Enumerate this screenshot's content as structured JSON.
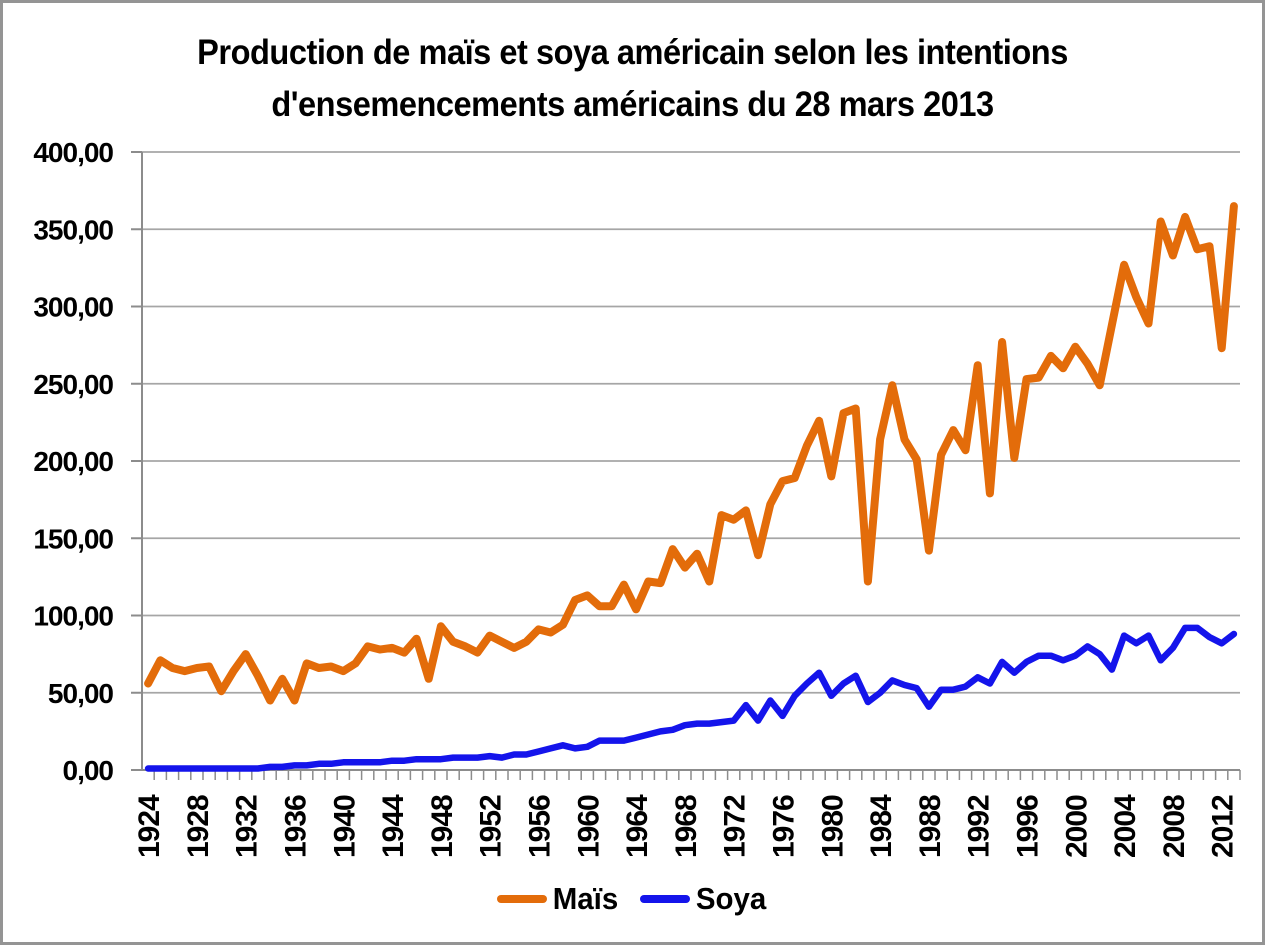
{
  "chart_data": {
    "type": "line",
    "title": "Production de maïs et soya américain selon les intentions d'ensemencements américains du 28 mars 2013",
    "title_lines": [
      "Production de maïs et soya américain selon les intentions",
      "d'ensemencements américains du 28 mars 2013"
    ],
    "x": [
      1924,
      1925,
      1926,
      1927,
      1928,
      1929,
      1930,
      1931,
      1932,
      1933,
      1934,
      1935,
      1936,
      1937,
      1938,
      1939,
      1940,
      1941,
      1942,
      1943,
      1944,
      1945,
      1946,
      1947,
      1948,
      1949,
      1950,
      1951,
      1952,
      1953,
      1954,
      1955,
      1956,
      1957,
      1958,
      1959,
      1960,
      1961,
      1962,
      1963,
      1964,
      1965,
      1966,
      1967,
      1968,
      1969,
      1970,
      1971,
      1972,
      1973,
      1974,
      1975,
      1976,
      1977,
      1978,
      1979,
      1980,
      1981,
      1982,
      1983,
      1984,
      1985,
      1986,
      1987,
      1988,
      1989,
      1990,
      1991,
      1992,
      1993,
      1994,
      1995,
      1996,
      1997,
      1998,
      1999,
      2000,
      2001,
      2002,
      2003,
      2004,
      2005,
      2006,
      2007,
      2008,
      2009,
      2010,
      2011,
      2012,
      2013
    ],
    "series": [
      {
        "name": "Maïs",
        "color": "#E36C0A",
        "values": [
          56,
          71,
          66,
          64,
          66,
          67,
          51,
          64,
          75,
          61,
          45,
          59,
          45,
          69,
          66,
          67,
          64,
          69,
          80,
          78,
          79,
          76,
          85,
          59,
          93,
          83,
          80,
          76,
          87,
          83,
          79,
          83,
          91,
          89,
          94,
          110,
          113,
          106,
          106,
          120,
          104,
          122,
          121,
          143,
          131,
          140,
          122,
          165,
          162,
          168,
          139,
          172,
          187,
          189,
          210,
          226,
          190,
          231,
          234,
          122,
          214,
          249,
          214,
          201,
          142,
          204,
          220,
          207,
          262,
          179,
          277,
          202,
          253,
          254,
          268,
          260,
          274,
          263,
          249,
          288,
          327,
          306,
          289,
          355,
          333,
          358,
          337,
          339,
          273,
          365
        ]
      },
      {
        "name": "Soya",
        "color": "#1414EB",
        "values": [
          1,
          1,
          1,
          1,
          1,
          1,
          1,
          1,
          1,
          1,
          2,
          2,
          3,
          3,
          4,
          4,
          5,
          5,
          5,
          5,
          6,
          6,
          7,
          7,
          7,
          8,
          8,
          8,
          9,
          8,
          10,
          10,
          12,
          14,
          16,
          14,
          15,
          19,
          19,
          19,
          21,
          23,
          25,
          26,
          29,
          30,
          30,
          31,
          32,
          42,
          32,
          45,
          35,
          48,
          56,
          63,
          48,
          56,
          61,
          44,
          50,
          58,
          55,
          53,
          41,
          52,
          52,
          54,
          60,
          56,
          70,
          63,
          70,
          74,
          74,
          71,
          74,
          80,
          75,
          65,
          87,
          82,
          87,
          71,
          79,
          92,
          92,
          86,
          82,
          88
        ]
      }
    ],
    "ylim": [
      0,
      400
    ],
    "y_tick_values": [
      0,
      50,
      100,
      150,
      200,
      250,
      300,
      350,
      400
    ],
    "y_tick_labels": [
      "0,00",
      "50,00",
      "100,00",
      "150,00",
      "200,00",
      "250,00",
      "300,00",
      "350,00",
      "400,00"
    ],
    "x_tick_years": [
      1924,
      1928,
      1932,
      1936,
      1940,
      1944,
      1948,
      1952,
      1956,
      1960,
      1964,
      1968,
      1972,
      1976,
      1980,
      1984,
      1988,
      1992,
      1996,
      2000,
      2004,
      2008,
      2012
    ],
    "grid": true,
    "legend_position": "bottom",
    "colors": {
      "gridline": "#A6A6A6",
      "axis": "#8C8C8C",
      "text": "#000000",
      "background": "#FFFFFF",
      "border": "#949494"
    }
  }
}
